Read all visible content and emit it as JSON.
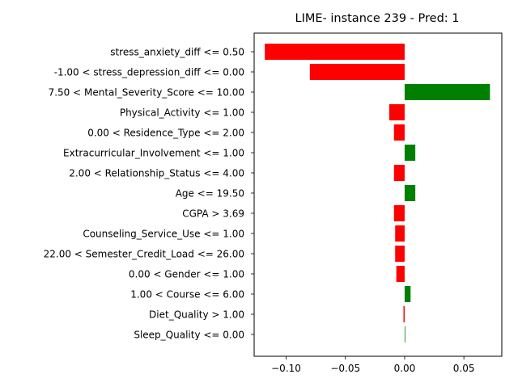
{
  "chart_data": {
    "type": "bar",
    "orientation": "horizontal",
    "title": "LIME- instance 239 - Pred: 1",
    "xlabel": "",
    "ylabel": "",
    "xlim": [
      -0.127,
      0.082
    ],
    "xticks": [
      -0.1,
      -0.05,
      0.0,
      0.05
    ],
    "xtick_labels": [
      "−0.10",
      "−0.05",
      "0.00",
      "0.05"
    ],
    "grid": false,
    "positive_color": "#008000",
    "negative_color": "#ff0000",
    "categories": [
      "stress_anxiety_diff <= 0.50",
      "-1.00 < stress_depression_diff <= 0.00",
      "7.50 < Mental_Severity_Score <= 10.00",
      "Physical_Activity <= 1.00",
      "0.00 < Residence_Type <= 2.00",
      "Extracurricular_Involvement <= 1.00",
      "2.00 < Relationship_Status <= 4.00",
      "Age <= 19.50",
      "CGPA > 3.69",
      "Counseling_Service_Use <= 1.00",
      "22.00 < Semester_Credit_Load <= 26.00",
      "0.00 < Gender <= 1.00",
      "1.00 < Course <= 6.00",
      "Diet_Quality > 1.00",
      "Sleep_Quality <= 0.00"
    ],
    "values": [
      -0.118,
      -0.08,
      0.072,
      -0.013,
      -0.009,
      0.009,
      -0.009,
      0.009,
      -0.009,
      -0.008,
      -0.008,
      -0.007,
      0.005,
      -0.001,
      0.0005
    ]
  }
}
